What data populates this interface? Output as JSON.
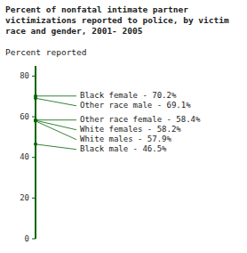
{
  "chart_data": {
    "type": "strip",
    "title": "Percent of nonfatal intimate partner\nvictimizations reported to police, by victim\nrace and gender, 2001- 2005",
    "y_label": "Percent reported",
    "categories": [
      "Black female - 70.2%",
      "Other race male - 69.1%",
      "Other race female - 58.4%",
      "White females - 58.2%",
      "White males - 57.9%",
      "Black male - 46.5%"
    ],
    "values": [
      70.2,
      69.1,
      58.4,
      58.2,
      57.9,
      46.5
    ],
    "color": "#006400",
    "ylim": [
      0,
      85
    ],
    "yticks": [
      0,
      20,
      40,
      60,
      80
    ]
  }
}
